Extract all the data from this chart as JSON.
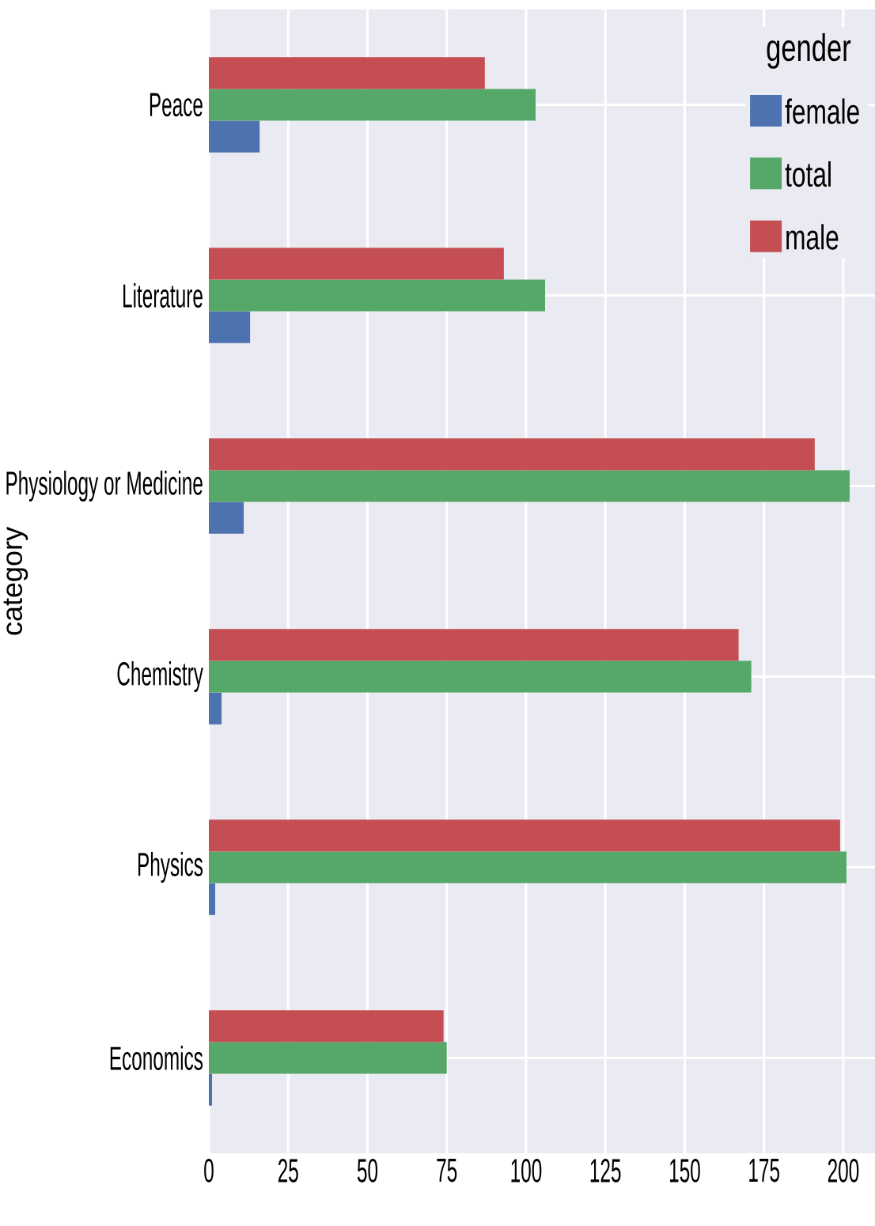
{
  "chart_data": {
    "type": "bar",
    "orientation": "horizontal",
    "ylabel": "category",
    "legend_title": "gender",
    "categories": [
      "Peace",
      "Literature",
      "Physiology or Medicine",
      "Chemistry",
      "Physics",
      "Economics"
    ],
    "series": [
      {
        "name": "female",
        "color": "#4c72b0",
        "values": [
          16,
          13,
          11,
          4,
          2,
          1
        ]
      },
      {
        "name": "total",
        "color": "#55a868",
        "values": [
          103,
          106,
          202,
          171,
          201,
          75
        ]
      },
      {
        "name": "male",
        "color": "#c44e52",
        "values": [
          87,
          93,
          191,
          167,
          199,
          74
        ]
      }
    ],
    "xlim": [
      0,
      210
    ],
    "xticks": [
      0,
      25,
      50,
      75,
      100,
      125,
      150,
      175,
      200
    ],
    "grid": true,
    "legend": "top right"
  }
}
